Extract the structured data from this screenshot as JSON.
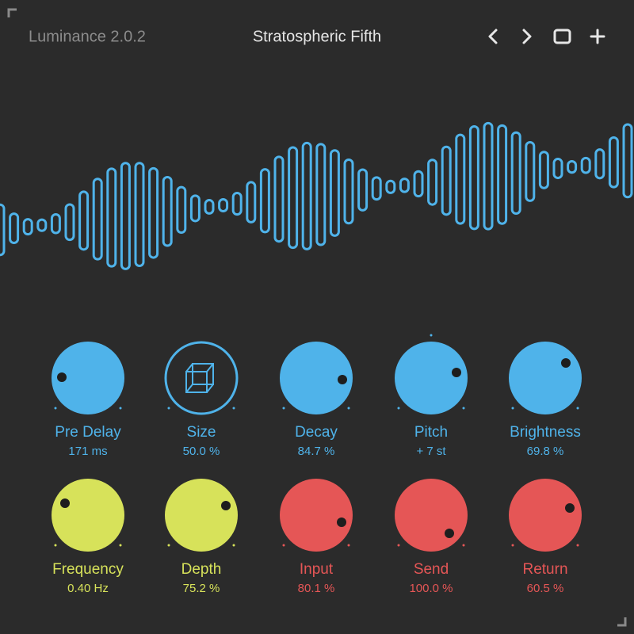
{
  "header": {
    "app": "Luminance 2.0.2",
    "preset": "Stratospheric Fifth"
  },
  "knobs": [
    {
      "label": "Pre Delay",
      "value": "171 ms"
    },
    {
      "label": "Size",
      "value": "50.0 %"
    },
    {
      "label": "Decay",
      "value": "84.7 %"
    },
    {
      "label": "Pitch",
      "value": "+ 7 st"
    },
    {
      "label": "Brightness",
      "value": "69.8 %"
    },
    {
      "label": "Frequency",
      "value": "0.40 Hz"
    },
    {
      "label": "Depth",
      "value": "75.2 %"
    },
    {
      "label": "Input",
      "value": "80.1 %"
    },
    {
      "label": "Send",
      "value": "100.0 %"
    },
    {
      "label": "Return",
      "value": "60.5 %"
    }
  ]
}
